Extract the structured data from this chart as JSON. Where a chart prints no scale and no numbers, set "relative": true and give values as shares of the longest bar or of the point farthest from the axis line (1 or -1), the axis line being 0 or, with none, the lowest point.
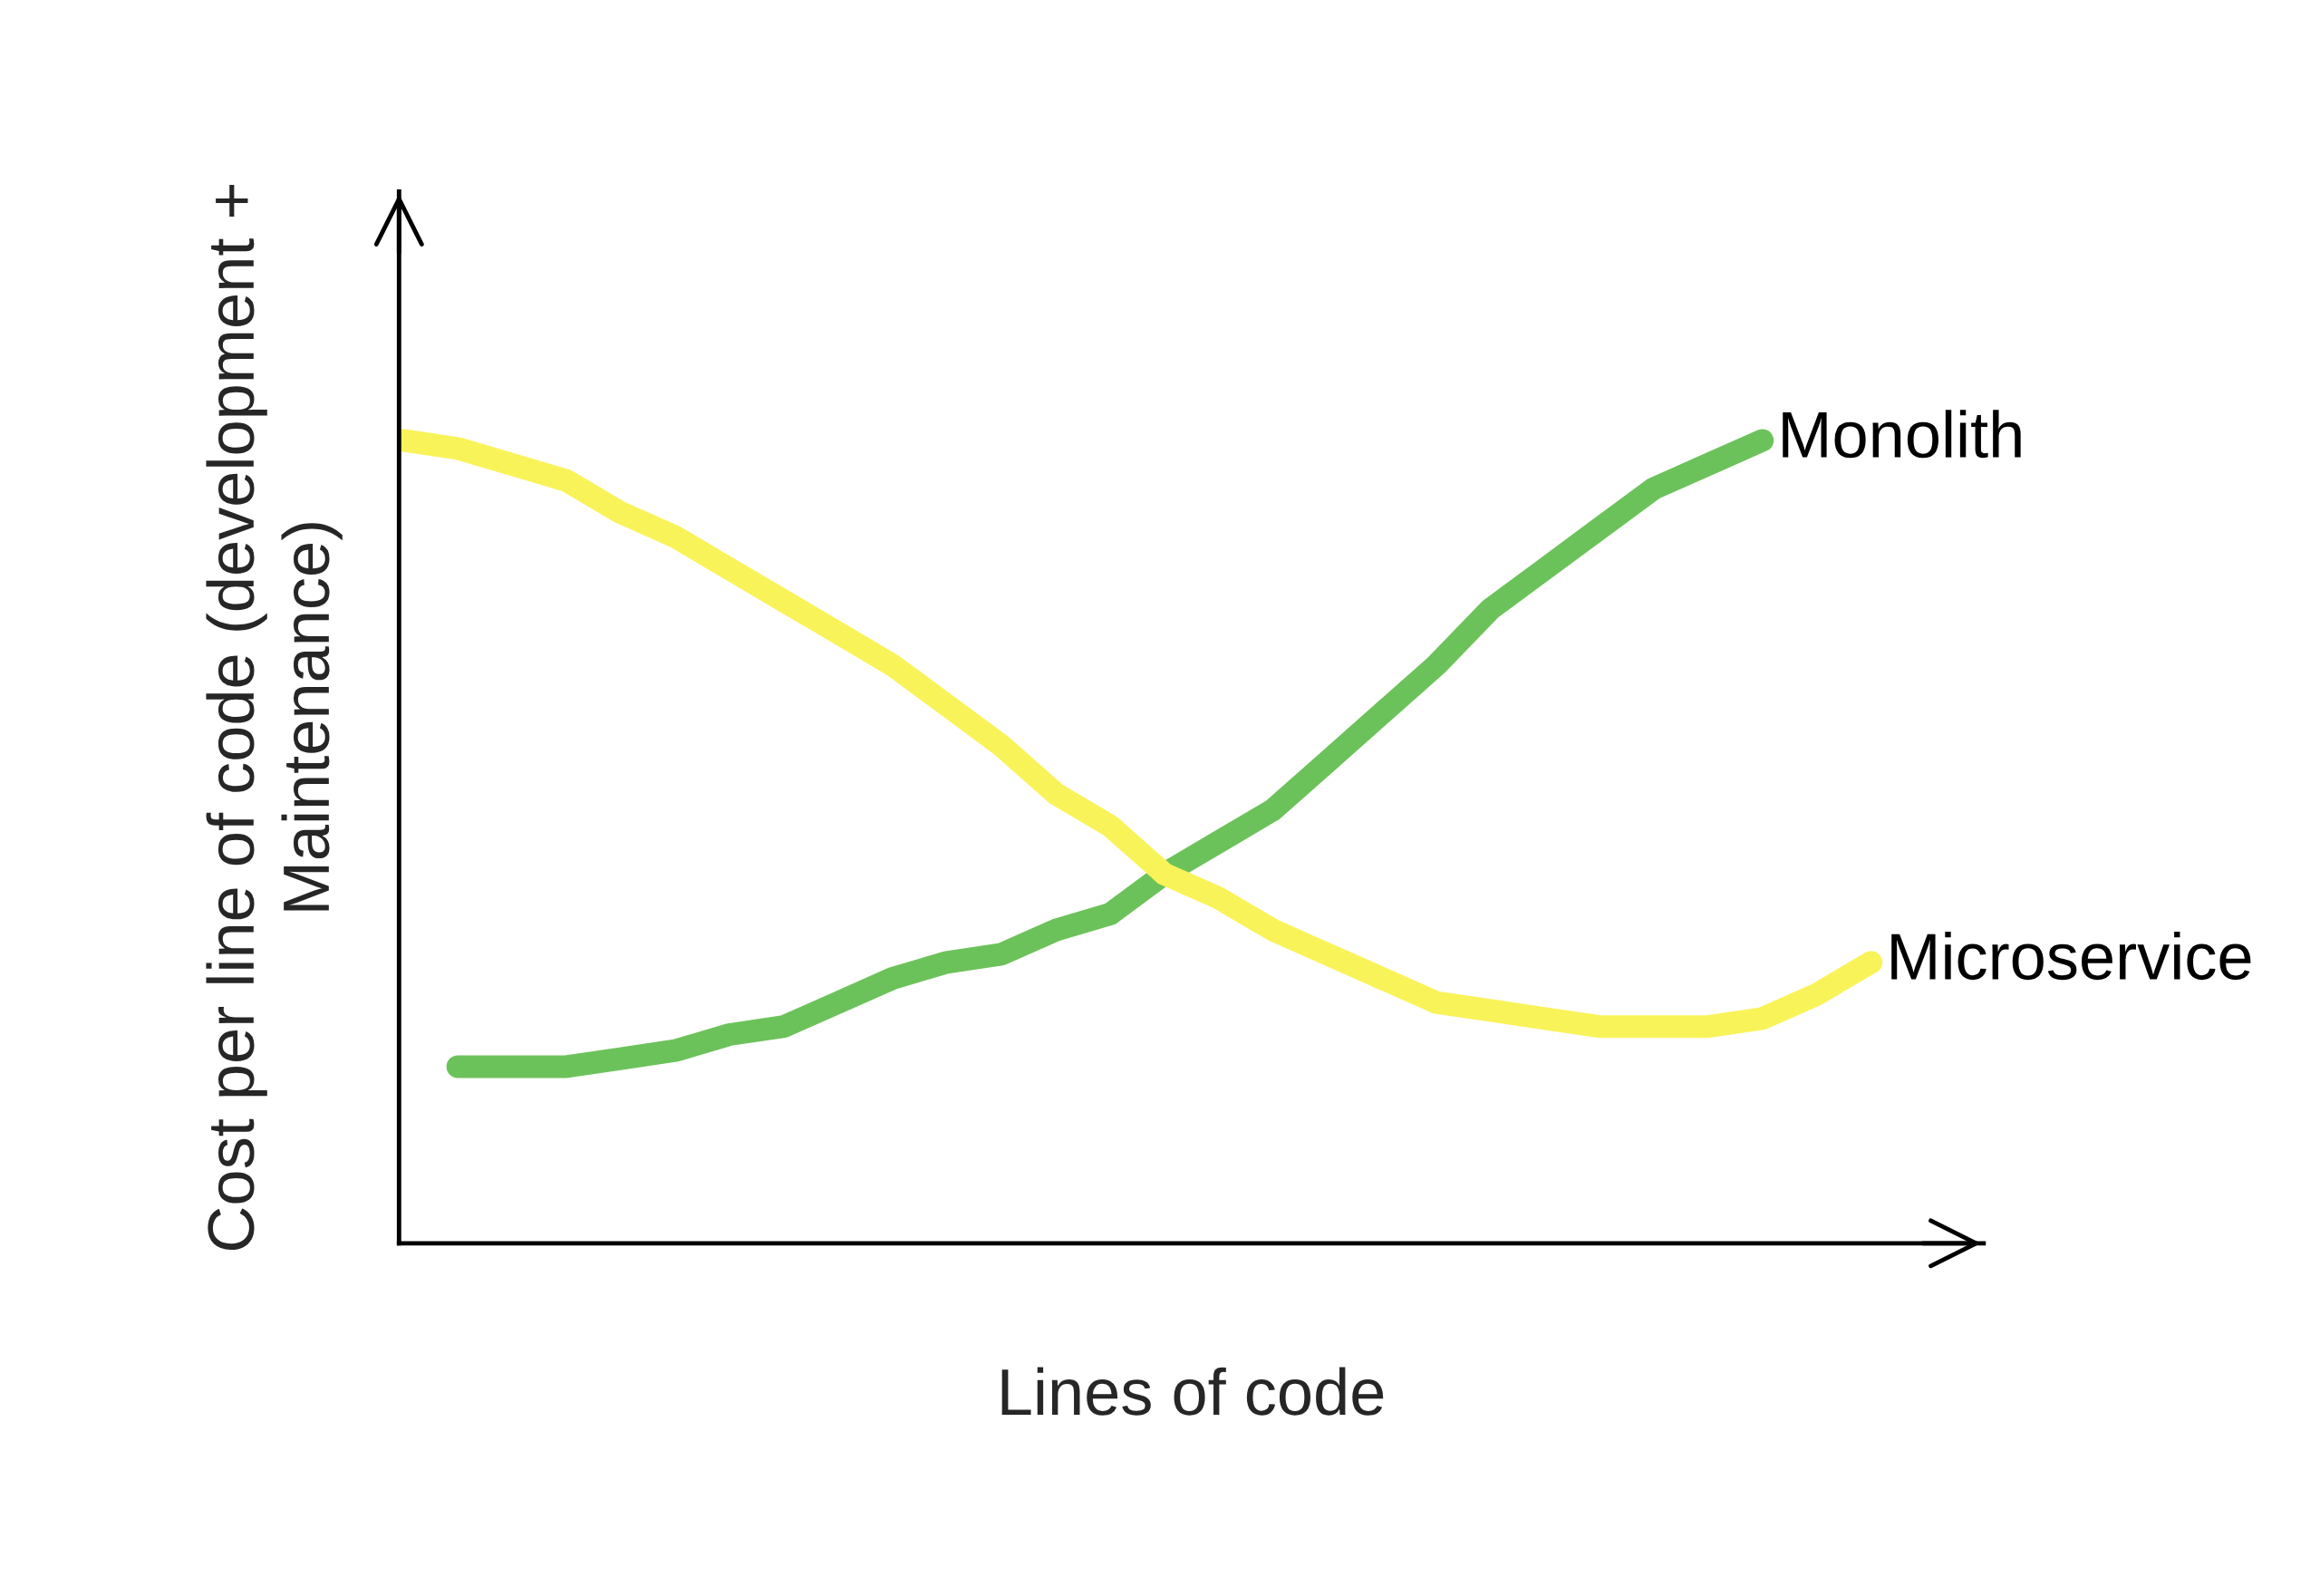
{
  "chart_data": {
    "type": "line",
    "relative": true,
    "line_style": "solid",
    "xlabel": "Lines of code",
    "ylabel": "Cost per line of code (development +\nMaintenance)",
    "categories": [
      null,
      null,
      null,
      null,
      null,
      null,
      null,
      null,
      null,
      null,
      null,
      null,
      null,
      null,
      null,
      null,
      null,
      null,
      null,
      null,
      null,
      null,
      null,
      null,
      null,
      null,
      null,
      null
    ],
    "series": [
      {
        "name": "Monolith",
        "color": "#6cc25a",
        "values": [
          null,
          0.22,
          0.22,
          0.22,
          0.23,
          0.24,
          0.26,
          0.27,
          0.3,
          0.33,
          0.35,
          0.36,
          0.39,
          0.41,
          0.46,
          0.5,
          0.54,
          0.6,
          0.66,
          0.72,
          0.79,
          0.84,
          0.89,
          0.94,
          0.97,
          1.0,
          null,
          null
        ]
      },
      {
        "name": "Microservice",
        "color": "#f9f35a",
        "values": [
          1.0,
          0.99,
          0.97,
          0.95,
          0.91,
          0.88,
          0.84,
          0.8,
          0.76,
          0.72,
          0.67,
          0.62,
          0.56,
          0.52,
          0.46,
          0.43,
          0.39,
          0.36,
          0.33,
          0.3,
          0.29,
          0.28,
          0.27,
          0.27,
          0.27,
          0.28,
          0.31,
          0.35
        ]
      }
    ]
  }
}
